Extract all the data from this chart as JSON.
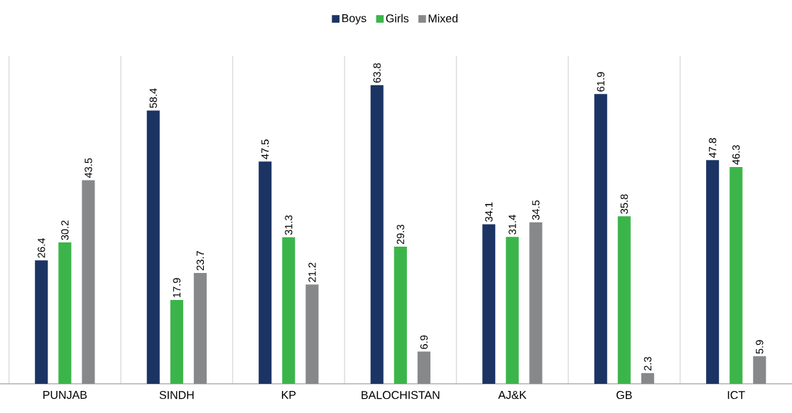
{
  "chart_data": {
    "type": "bar",
    "categories": [
      "PUNJAB",
      "SINDH",
      "KP",
      "BALOCHISTAN",
      "AJ&K",
      "GB",
      "ICT"
    ],
    "series": [
      {
        "name": "Boys",
        "color": "#1b3464",
        "values": [
          26.4,
          58.4,
          47.5,
          63.8,
          34.1,
          61.9,
          47.8
        ]
      },
      {
        "name": "Girls",
        "color": "#3bb54a",
        "values": [
          30.2,
          17.9,
          31.3,
          29.3,
          31.4,
          35.8,
          46.3
        ]
      },
      {
        "name": "Mixed",
        "color": "#87888a",
        "values": [
          43.5,
          23.7,
          21.2,
          6.9,
          34.5,
          2.3,
          5.9
        ]
      }
    ],
    "ylim": [
      0,
      70
    ],
    "data_labels": true,
    "grid": "x",
    "legend": "top"
  }
}
